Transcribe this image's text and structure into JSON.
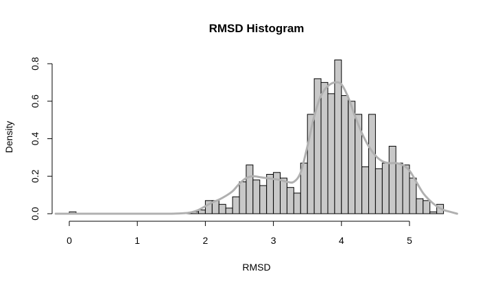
{
  "chart_data": {
    "type": "bar",
    "title": "RMSD Histogram",
    "xlabel": "RMSD",
    "ylabel": "Density",
    "xlim": [
      -0.2,
      5.7
    ],
    "ylim": [
      0,
      0.8
    ],
    "x_ticks": [
      0,
      1,
      2,
      3,
      4,
      5
    ],
    "y_ticks": [
      0.0,
      0.2,
      0.4,
      0.6,
      0.8
    ],
    "x_tick_labels": [
      "0",
      "1",
      "2",
      "3",
      "4",
      "5"
    ],
    "y_tick_labels": [
      "0.0",
      "0.2",
      "0.4",
      "0.6",
      "0.8"
    ],
    "grid": false,
    "bar_fill": "#c8c8c8",
    "bar_stroke": "#000000",
    "density_color": "#b0b0b0",
    "histogram": {
      "bin_width": 0.1,
      "bins": [
        {
          "start": 0.0,
          "density": 0.01
        },
        {
          "start": 1.7,
          "density": 0.005
        },
        {
          "start": 1.8,
          "density": 0.01
        },
        {
          "start": 1.9,
          "density": 0.02
        },
        {
          "start": 2.0,
          "density": 0.07
        },
        {
          "start": 2.1,
          "density": 0.07
        },
        {
          "start": 2.2,
          "density": 0.05
        },
        {
          "start": 2.3,
          "density": 0.03
        },
        {
          "start": 2.4,
          "density": 0.09
        },
        {
          "start": 2.5,
          "density": 0.17
        },
        {
          "start": 2.6,
          "density": 0.26
        },
        {
          "start": 2.7,
          "density": 0.18
        },
        {
          "start": 2.8,
          "density": 0.15
        },
        {
          "start": 2.9,
          "density": 0.21
        },
        {
          "start": 3.0,
          "density": 0.22
        },
        {
          "start": 3.1,
          "density": 0.19
        },
        {
          "start": 3.2,
          "density": 0.14
        },
        {
          "start": 3.3,
          "density": 0.11
        },
        {
          "start": 3.4,
          "density": 0.27
        },
        {
          "start": 3.5,
          "density": 0.53
        },
        {
          "start": 3.6,
          "density": 0.72
        },
        {
          "start": 3.7,
          "density": 0.7
        },
        {
          "start": 3.8,
          "density": 0.64
        },
        {
          "start": 3.9,
          "density": 0.82
        },
        {
          "start": 4.0,
          "density": 0.63
        },
        {
          "start": 4.1,
          "density": 0.6
        },
        {
          "start": 4.2,
          "density": 0.53
        },
        {
          "start": 4.3,
          "density": 0.25
        },
        {
          "start": 4.4,
          "density": 0.53
        },
        {
          "start": 4.5,
          "density": 0.24
        },
        {
          "start": 4.6,
          "density": 0.27
        },
        {
          "start": 4.7,
          "density": 0.36
        },
        {
          "start": 4.8,
          "density": 0.27
        },
        {
          "start": 4.9,
          "density": 0.26
        },
        {
          "start": 5.0,
          "density": 0.19
        },
        {
          "start": 5.1,
          "density": 0.08
        },
        {
          "start": 5.2,
          "density": 0.07
        },
        {
          "start": 5.3,
          "density": 0.01
        },
        {
          "start": 5.4,
          "density": 0.05
        }
      ]
    },
    "density_curve": {
      "x": [
        -0.2,
        0.0,
        0.5,
        1.0,
        1.5,
        1.7,
        1.8,
        1.9,
        2.0,
        2.1,
        2.2,
        2.3,
        2.4,
        2.5,
        2.6,
        2.7,
        2.8,
        2.9,
        3.0,
        3.1,
        3.2,
        3.3,
        3.4,
        3.5,
        3.6,
        3.7,
        3.8,
        3.9,
        4.0,
        4.1,
        4.2,
        4.3,
        4.4,
        4.5,
        4.6,
        4.7,
        4.8,
        4.9,
        5.0,
        5.1,
        5.2,
        5.3,
        5.4,
        5.5,
        5.6,
        5.7
      ],
      "y": [
        0.0,
        0.0,
        0.0,
        0.0,
        0.0,
        0.003,
        0.008,
        0.02,
        0.04,
        0.06,
        0.075,
        0.095,
        0.12,
        0.16,
        0.19,
        0.2,
        0.195,
        0.19,
        0.185,
        0.18,
        0.17,
        0.17,
        0.22,
        0.36,
        0.52,
        0.63,
        0.68,
        0.7,
        0.69,
        0.62,
        0.52,
        0.43,
        0.36,
        0.31,
        0.28,
        0.27,
        0.27,
        0.26,
        0.23,
        0.17,
        0.11,
        0.07,
        0.04,
        0.02,
        0.01,
        0.0
      ]
    }
  }
}
